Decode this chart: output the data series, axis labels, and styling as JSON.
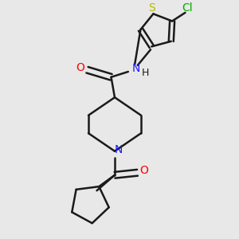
{
  "bg_color": "#e8e8e8",
  "bond_color": "#1a1a1a",
  "N_color": "#1a1aff",
  "O_color": "#ff0000",
  "S_color": "#b8b800",
  "Cl_color": "#00aa00",
  "bond_width": 1.8,
  "figsize": [
    3.0,
    3.0
  ],
  "dpi": 100,
  "xlim": [
    0,
    10
  ],
  "ylim": [
    0,
    10
  ]
}
